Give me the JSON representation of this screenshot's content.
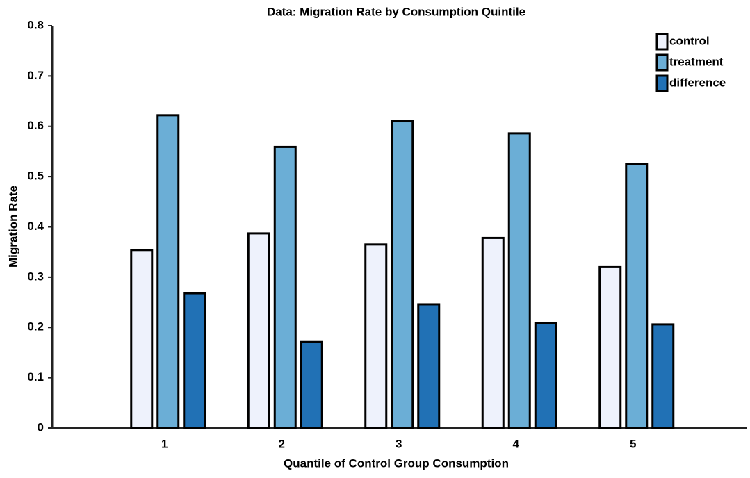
{
  "chart_data": {
    "type": "bar",
    "title": "Data: Migration Rate by Consumption Quintile",
    "x_label": "Quantile of Control Group Consumption",
    "y_label": "Migration Rate",
    "categories": [
      "1",
      "2",
      "3",
      "4",
      "5"
    ],
    "series": [
      {
        "name": "control",
        "color": "#eef2fc",
        "values": [
          0.354,
          0.387,
          0.365,
          0.378,
          0.32
        ]
      },
      {
        "name": "treatment",
        "color": "#6baed6",
        "values": [
          0.622,
          0.559,
          0.61,
          0.586,
          0.525
        ]
      },
      {
        "name": "difference",
        "color": "#2171b5",
        "values": [
          0.268,
          0.171,
          0.246,
          0.209,
          0.206
        ]
      }
    ],
    "ylim": [
      0,
      0.8
    ],
    "yticks": [
      0,
      0.1,
      0.2,
      0.3,
      0.4,
      0.5,
      0.6,
      0.7,
      0.8
    ],
    "grid": false,
    "legend": "top-right"
  }
}
